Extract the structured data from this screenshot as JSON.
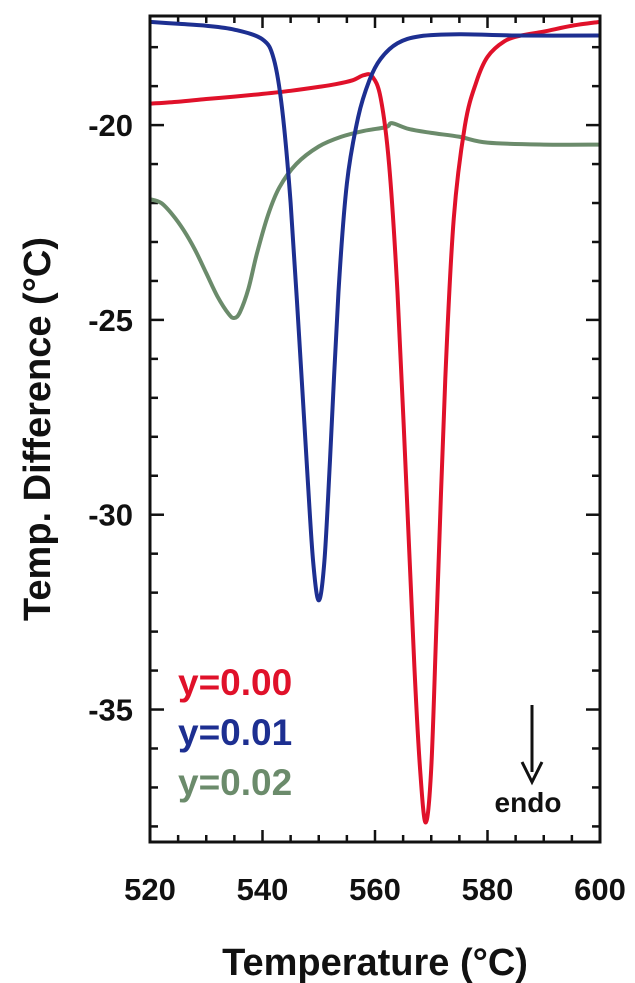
{
  "chart_data": {
    "type": "line",
    "xlabel": "Temperature (°C)",
    "ylabel": "Temp. Difference (°C)",
    "xlim": [
      520,
      600
    ],
    "ylim": [
      -38.4,
      -17.2
    ],
    "xticks": [
      520,
      540,
      560,
      580,
      600
    ],
    "xtick_labels": [
      "520",
      "540",
      "560",
      "580",
      "600"
    ],
    "yticks": [
      -20,
      -25,
      -30,
      -35
    ],
    "ytick_labels": [
      "-20",
      "-25",
      "-30",
      "-35"
    ],
    "grid": false,
    "legend_placement": "bottom-left",
    "annotation": {
      "text": "endo",
      "arrow": "down"
    },
    "series": [
      {
        "name": "y=0.00",
        "color": "#e0112a",
        "x": [
          520,
          525,
          530,
          535,
          540,
          545,
          550,
          553,
          556,
          558,
          559.5,
          561,
          562.5,
          564,
          565.5,
          567,
          568,
          569,
          570,
          571,
          572.5,
          574,
          576,
          578,
          580,
          583,
          586,
          590,
          595,
          600
        ],
        "y": [
          -19.45,
          -19.4,
          -19.33,
          -19.27,
          -19.2,
          -19.12,
          -19.02,
          -18.95,
          -18.85,
          -18.72,
          -18.75,
          -19.3,
          -21.0,
          -24.3,
          -29.0,
          -33.9,
          -36.5,
          -37.9,
          -36.5,
          -32.5,
          -26.5,
          -22.4,
          -20.0,
          -18.9,
          -18.25,
          -17.85,
          -17.7,
          -17.6,
          -17.45,
          -17.35
        ]
      },
      {
        "name": "y=0.01",
        "color": "#1d2f91",
        "x": [
          520,
          525,
          530,
          535,
          540,
          542,
          543.5,
          545,
          546.5,
          548,
          549,
          550,
          551,
          552,
          553.5,
          555,
          557,
          559,
          561,
          564,
          568,
          575,
          585,
          600
        ],
        "y": [
          -17.35,
          -17.4,
          -17.45,
          -17.55,
          -17.8,
          -18.3,
          -19.6,
          -22.0,
          -25.4,
          -29.0,
          -31.2,
          -32.2,
          -31.2,
          -28.6,
          -24.3,
          -21.5,
          -19.8,
          -18.85,
          -18.3,
          -17.9,
          -17.72,
          -17.67,
          -17.7,
          -17.7
        ]
      },
      {
        "name": "y=0.02",
        "color": "#6b8b6b",
        "x": [
          520,
          522,
          524,
          526,
          528,
          530,
          532,
          534,
          535,
          536,
          537.5,
          539,
          541,
          543,
          546,
          550,
          554,
          558,
          562,
          563,
          566,
          570,
          575,
          580,
          590,
          600
        ],
        "y": [
          -21.9,
          -22.0,
          -22.3,
          -22.7,
          -23.2,
          -23.8,
          -24.4,
          -24.85,
          -24.95,
          -24.8,
          -24.2,
          -23.3,
          -22.3,
          -21.6,
          -21.0,
          -20.55,
          -20.3,
          -20.15,
          -20.05,
          -19.95,
          -20.1,
          -20.2,
          -20.3,
          -20.45,
          -20.5,
          -20.5
        ]
      }
    ]
  }
}
